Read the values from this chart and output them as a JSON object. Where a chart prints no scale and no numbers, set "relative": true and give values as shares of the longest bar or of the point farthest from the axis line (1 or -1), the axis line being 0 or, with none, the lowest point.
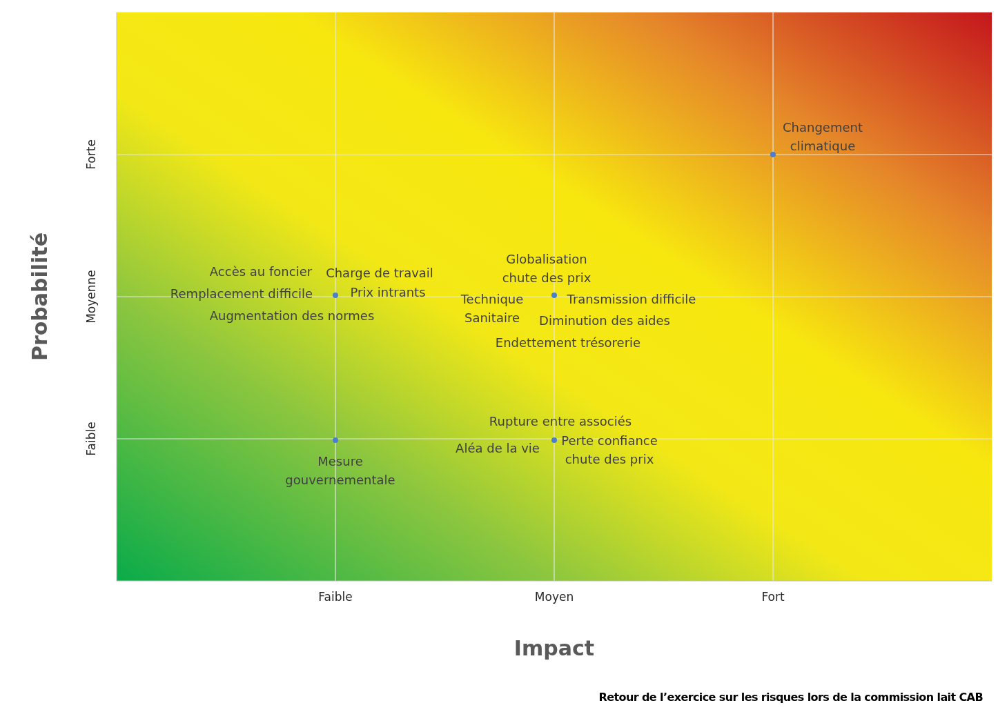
{
  "chart_data": {
    "type": "scatter",
    "xlabel": "Impact",
    "ylabel": "Probabilité",
    "relative": true,
    "categories": [
      "Faible",
      "Moyen",
      "Fort"
    ],
    "y_categories": [
      "Forte",
      "Moyenne",
      "Faible"
    ],
    "series": [
      {
        "color": "#4a7fd0",
        "values": [
          0.67,
          0.67,
          1
        ]
      },
      {
        "color": "#4a7fd0",
        "values": [
          0.33,
          0.33,
          null
        ]
      }
    ],
    "marker": "circle",
    "grid": true,
    "annotations": [
      {
        "text": "Accès au foncier",
        "x": "Faible",
        "y": 0.67
      },
      {
        "text": "Charge de travail",
        "x": "Faible",
        "y": 0.67
      },
      {
        "text": "Remplacement difficile",
        "x": "Faible",
        "y": 0.67
      },
      {
        "text": "Prix intrants",
        "x": "Faible",
        "y": 0.67
      },
      {
        "text": "Augmentation des normes",
        "x": "Faible",
        "y": 0.67
      },
      {
        "text": "Globalisation\nchute des prix",
        "x": "Moyen",
        "y": 0.67
      },
      {
        "text": "Technique\nSanitaire",
        "x": "Moyen",
        "y": 0.67
      },
      {
        "text": "Transmission difficile",
        "x": "Moyen",
        "y": 0.67
      },
      {
        "text": "Diminution des aides",
        "x": "Moyen",
        "y": 0.67
      },
      "Endettement trésorerie",
      {
        "text": "Changement\nclimatique",
        "x": "Fort",
        "y": 1
      },
      {
        "text": "Mesure\ngouvernementale",
        "x": "Faible",
        "y": 0.33
      },
      {
        "text": "Rupture entre associés",
        "x": "Moyen",
        "y": 0.33
      },
      {
        "text": "Aléa de la vie",
        "x": "Moyen",
        "y": 0.33
      },
      {
        "text": "Perte confiance\nchute des prix",
        "x": "Moyen",
        "y": 0.33
      },
      "Retour de l’exercice sur les risques lors de la commission lait CAB"
    ]
  }
}
